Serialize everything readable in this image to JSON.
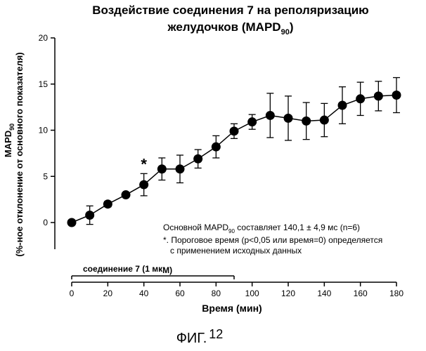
{
  "chart_data": {
    "type": "line",
    "title_line1": "Воздействие соединения 7 на реполяризацию",
    "title_line2": "желудочков (MAPD",
    "title_sub": "90",
    "title_end": ")",
    "xlabel": "Время (мин)",
    "ylabel_line1_main": "MAPD",
    "ylabel_line1_sub": "90",
    "ylabel_line2": "(%-ное отклонение от основного показателя)",
    "xlim": [
      0,
      180
    ],
    "ylim": [
      0,
      20
    ],
    "xticks": [
      "0",
      "20",
      "40",
      "60",
      "80",
      "100",
      "120",
      "140",
      "160",
      "180"
    ],
    "yticks": [
      "0",
      "5",
      "10",
      "15",
      "20"
    ],
    "x": [
      0,
      10,
      20,
      30,
      40,
      50,
      60,
      70,
      80,
      90,
      100,
      110,
      120,
      130,
      140,
      150,
      160,
      170,
      180
    ],
    "y": [
      0,
      0.8,
      2.0,
      3.0,
      4.1,
      5.8,
      5.8,
      6.9,
      8.2,
      9.9,
      10.9,
      11.6,
      11.3,
      11.0,
      11.1,
      12.7,
      13.4,
      13.7,
      13.8
    ],
    "error": [
      0,
      1.0,
      0.3,
      0.25,
      1.2,
      1.2,
      1.5,
      1.0,
      1.2,
      0.8,
      0.8,
      2.4,
      2.4,
      2.0,
      1.8,
      2.0,
      1.8,
      1.6,
      1.9
    ],
    "significance_marker": {
      "x": 40,
      "symbol": "*"
    },
    "treatment_bar": {
      "label_main": "соединение 7 (1 мк",
      "label_end": "M)",
      "start": 0,
      "end": 90
    },
    "note1_main": "Основной MAPD",
    "note1_sub": "90",
    "note1_end": " составляет 140,1 ± 4,9 мс (n=6)",
    "note2_line1": "*. Пороговое время (p<0,05 или время=0) определяется",
    "note2_line2": "с применением исходных данных"
  },
  "figure_label_main": "ФИГ.",
  "figure_label_num": "12"
}
